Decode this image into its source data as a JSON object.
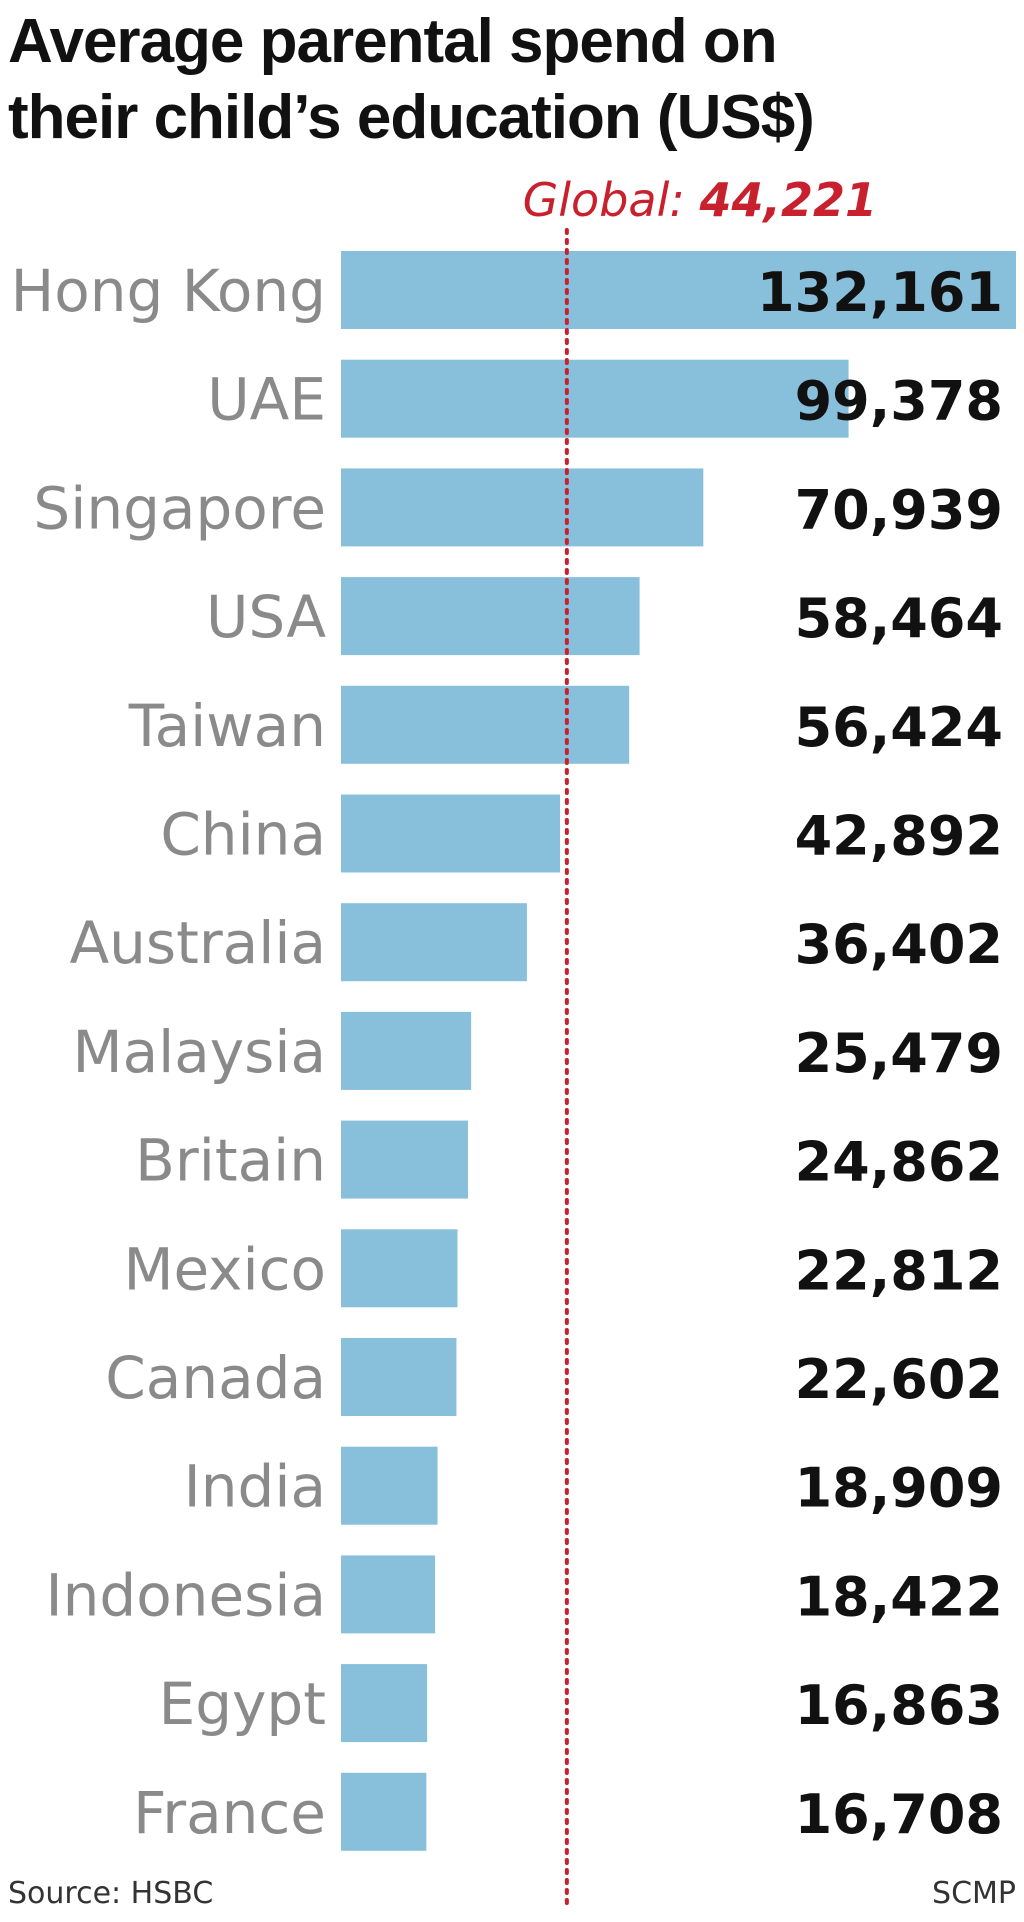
{
  "title_lines": [
    "Average parental spend on",
    "their child’s education (US$)"
  ],
  "source": "Source: HSBC",
  "credit": "SCMP",
  "colors": {
    "bar": "#88c0dc",
    "reference": "#c8202c",
    "label": "#8a8a8a",
    "value": "#111111"
  },
  "chart_data": {
    "type": "bar",
    "orientation": "horizontal",
    "title": "Average parental spend on their child’s education (US$)",
    "categories": [
      "Hong Kong",
      "UAE",
      "Singapore",
      "USA",
      "Taiwan",
      "China",
      "Australia",
      "Malaysia",
      "Britain",
      "Mexico",
      "Canada",
      "India",
      "Indonesia",
      "Egypt",
      "France"
    ],
    "values": [
      132161,
      99378,
      70939,
      58464,
      56424,
      42892,
      36402,
      25479,
      24862,
      22812,
      22602,
      18909,
      18422,
      16863,
      16708
    ],
    "value_labels": [
      "132,161",
      "99,378",
      "70,939",
      "58,464",
      "56,424",
      "42,892",
      "36,402",
      "25,479",
      "24,862",
      "22,812",
      "22,602",
      "18,909",
      "18,422",
      "16,863",
      "16,708"
    ],
    "reference_line": {
      "label": "Global:",
      "value": 44221,
      "value_label": "44,221"
    },
    "xlim": [
      0,
      132161
    ],
    "grid": false,
    "legend": "none"
  }
}
